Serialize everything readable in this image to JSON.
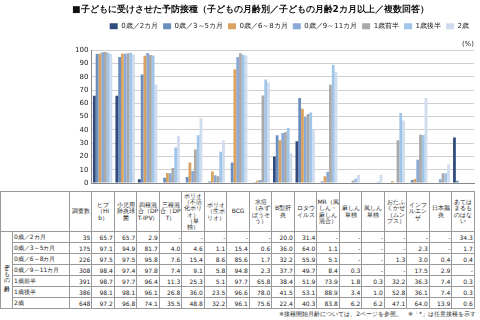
{
  "chart_data": {
    "type": "bar",
    "title": "■子どもに受けさせた予防接種（子どもの月齢別／子どもの月齢2カ月以上／複数回答）",
    "ylabel": "(%)",
    "categories": [
      "ヒブ（Hib）",
      "小児用肺炎球菌",
      "四種混合（DPT-IPV）",
      "三種混合（DPT）",
      "ポリオ（不活化ポリオ）（単独）",
      "ポリオ（生ポリオ）",
      "BCG",
      "水痘（みずぼうそう）",
      "B型肝炎",
      "ロタウイルス",
      "MR（風しん・麻しん混合）",
      "麻しん単独",
      "風しん単独",
      "おたふくかぜ（ムンプス）",
      "インフルエンザ",
      "日本脳炎",
      "あてはまるものはない"
    ],
    "series": [
      {
        "name": "0歳／2カ月",
        "color": "#2f4b7c",
        "n": 35,
        "values": [
          65.7,
          65.7,
          2.9,
          null,
          null,
          null,
          null,
          null,
          20.0,
          31.4,
          null,
          null,
          null,
          null,
          null,
          null,
          34.3
        ],
        "value_labels": [
          "65.7",
          "65.7",
          "2.9",
          "-",
          "-",
          "-",
          "-",
          "-",
          "20.0",
          "31.4",
          "-",
          "-",
          "-",
          "-",
          "-",
          "-",
          "34.3"
        ]
      },
      {
        "name": "0歳／3～5カ月",
        "color": "#6c8ebf",
        "n": 175,
        "values": [
          97.1,
          94.9,
          81.7,
          4.0,
          4.6,
          1.1,
          15.4,
          0.6,
          36.0,
          64.0,
          1.1,
          null,
          null,
          null,
          2.3,
          null,
          1.7
        ],
        "value_labels": [
          "97.1",
          "94.9",
          "81.7",
          "4.0",
          "4.6",
          "1.1",
          "15.4",
          "0.6",
          "36.0",
          "64.0",
          "1.1",
          "-",
          "-",
          "-",
          "2.3",
          "-",
          "1.7"
        ]
      },
      {
        "name": "0歳／6～8カ月",
        "color": "#d9a35f",
        "n": 226,
        "values": [
          97.5,
          97.5,
          95.8,
          7.6,
          15.4,
          8.6,
          85.6,
          1.7,
          32.2,
          55.9,
          5.1,
          null,
          null,
          1.3,
          3.0,
          0.4,
          0.4
        ],
        "value_labels": [
          "97.5",
          "97.5",
          "95.8",
          "7.6",
          "15.4",
          "8.6",
          "85.6",
          "1.7",
          "32.2",
          "55.9",
          "5.1",
          "-",
          "-",
          "1.3",
          "3.0",
          "0.4",
          "0.4"
        ]
      },
      {
        "name": "0歳／9～11カ月",
        "color": "#8aa9d6",
        "n": 308,
        "values": [
          98.4,
          97.4,
          97.8,
          7.4,
          9.1,
          5.8,
          94.8,
          2.3,
          37.7,
          49.7,
          8.4,
          0.3,
          null,
          null,
          17.5,
          2.9,
          null
        ],
        "value_labels": [
          "98.4",
          "97.4",
          "97.8",
          "7.4",
          "9.1",
          "5.8",
          "94.8",
          "2.3",
          "37.7",
          "49.7",
          "8.4",
          "0.3",
          "-",
          "-",
          "17.5",
          "2.9",
          "-"
        ]
      },
      {
        "name": "1歳前半",
        "color": "#a9a9a9",
        "n": 391,
        "values": [
          98.7,
          97.7,
          96.4,
          11.3,
          25.3,
          5.1,
          97.7,
          65.8,
          38.4,
          51.9,
          73.9,
          1.8,
          0.3,
          32.2,
          36.3,
          7.4,
          0.3
        ],
        "value_labels": [
          "98.7",
          "97.7",
          "96.4",
          "11.3",
          "25.3",
          "5.1",
          "97.7",
          "65.8",
          "38.4",
          "51.9",
          "73.9",
          "1.8",
          "0.3",
          "32.2",
          "36.3",
          "7.4",
          "0.3"
        ]
      },
      {
        "name": "1歳後半",
        "color": "#9fc5e8",
        "n": 386,
        "values": [
          98.1,
          98.1,
          96.1,
          26.8,
          36.0,
          23.5,
          96.6,
          78.0,
          41.5,
          53.1,
          88.9,
          3.4,
          1.0,
          52.8,
          36.1,
          7.4,
          0.3
        ],
        "value_labels": [
          "98.1",
          "98.1",
          "96.1",
          "26.8",
          "36.0",
          "23.5",
          "96.6",
          "78.0",
          "41.5",
          "53.1",
          "88.9",
          "3.4",
          "1.0",
          "52.8",
          "36.1",
          "7.4",
          "0.3"
        ]
      },
      {
        "name": "2歳",
        "color": "#cfdcee",
        "n": 648,
        "values": [
          97.2,
          96.8,
          74.1,
          35.5,
          48.8,
          32.2,
          96.1,
          75.6,
          22.4,
          40.3,
          83.8,
          6.2,
          6.2,
          47.1,
          64.0,
          13.9,
          0.6
        ],
        "value_labels": [
          "97.2",
          "96.8",
          "74.1",
          "35.5",
          "48.8",
          "32.2",
          "96.1",
          "75.6",
          "22.4",
          "40.3",
          "83.8",
          "6.2",
          "6.2",
          "47.1",
          "64.0",
          "13.9",
          "0.6"
        ]
      }
    ],
    "ylim": [
      0,
      100
    ],
    "yticks": [
      0,
      10,
      20,
      30,
      40,
      50,
      60,
      70,
      80,
      90,
      100
    ],
    "grid": true,
    "legend": "top",
    "table": {
      "row_header": "子どもの月齢",
      "n_header": "調査数"
    },
    "notes": [
      "※接種開始月齢については、2ページを参照。",
      "※「*」は任意接種を示す"
    ]
  }
}
